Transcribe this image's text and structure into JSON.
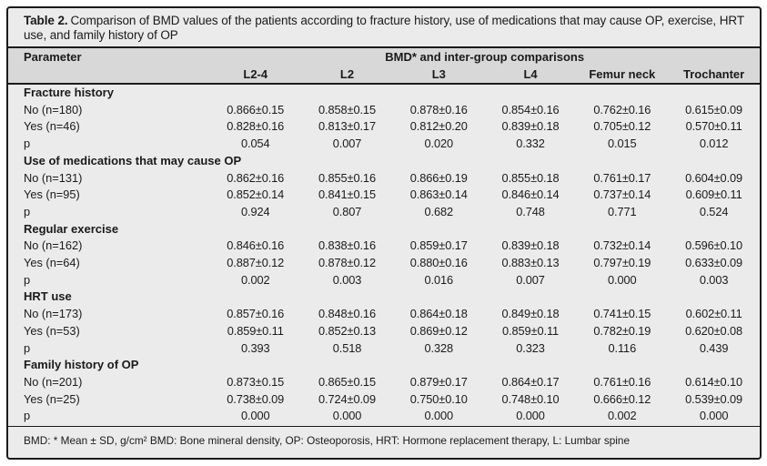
{
  "colors": {
    "page_bg": "#ffffff",
    "table_bg": "#ebebeb",
    "header_band": "#d8d8d8",
    "border": "#1b1b1b",
    "text": "#1a1a1a"
  },
  "table": {
    "title_label": "Table 2.",
    "title_text": "Comparison of BMD values of the patients according to fracture history, use of medications that may cause OP, exercise, HRT use, and family history of OP",
    "header": {
      "parameter": "Parameter",
      "group": "BMD* and inter-group comparisons",
      "columns": [
        "L2-4",
        "L2",
        "L3",
        "L4",
        "Femur neck",
        "Trochanter"
      ]
    },
    "sections": [
      {
        "name": "Fracture history",
        "rows": [
          {
            "label": "No (n=180)",
            "values": [
              "0.866±0.15",
              "0.858±0.15",
              "0.878±0.16",
              "0.854±0.16",
              "0.762±0.16",
              "0.615±0.09"
            ]
          },
          {
            "label": "Yes (n=46)",
            "values": [
              "0.828±0.16",
              "0.813±0.17",
              "0.812±0.20",
              "0.839±0.18",
              "0.705±0.12",
              "0.570±0.11"
            ]
          },
          {
            "label": "p",
            "values": [
              "0.054",
              "0.007",
              "0.020",
              "0.332",
              "0.015",
              "0.012"
            ]
          }
        ]
      },
      {
        "name": "Use of medications that may cause OP",
        "rows": [
          {
            "label": "No (n=131)",
            "values": [
              "0.862±0.16",
              "0.855±0.16",
              "0.866±0.19",
              "0.855±0.18",
              "0.761±0.17",
              "0.604±0.09"
            ]
          },
          {
            "label": "Yes (n=95)",
            "values": [
              "0.852±0.14",
              "0.841±0.15",
              "0.863±0.14",
              "0.846±0.14",
              "0.737±0.14",
              "0.609±0.11"
            ]
          },
          {
            "label": "p",
            "values": [
              "0.924",
              "0.807",
              "0.682",
              "0.748",
              "0.771",
              "0.524"
            ]
          }
        ]
      },
      {
        "name": "Regular exercise",
        "rows": [
          {
            "label": "No (n=162)",
            "values": [
              "0.846±0.16",
              "0.838±0.16",
              "0.859±0.17",
              "0.839±0.18",
              "0.732±0.14",
              "0.596±0.10"
            ]
          },
          {
            "label": "Yes (n=64)",
            "values": [
              "0.887±0.12",
              "0.878±0.12",
              "0.880±0.16",
              "0.883±0.13",
              "0.797±0.19",
              "0.633±0.09"
            ]
          },
          {
            "label": "p",
            "values": [
              "0.002",
              "0.003",
              "0.016",
              "0.007",
              "0.000",
              "0.003"
            ]
          }
        ]
      },
      {
        "name": "HRT use",
        "rows": [
          {
            "label": "No (n=173)",
            "values": [
              "0.857±0.16",
              "0.848±0.16",
              "0.864±0.18",
              "0.849±0.18",
              "0.741±0.15",
              "0.602±0.11"
            ]
          },
          {
            "label": "Yes (n=53)",
            "values": [
              "0.859±0.11",
              "0.852±0.13",
              "0.869±0.12",
              "0.859±0.11",
              "0.782±0.19",
              "0.620±0.08"
            ]
          },
          {
            "label": "p",
            "values": [
              "0.393",
              "0.518",
              "0.328",
              "0.323",
              "0.116",
              "0.439"
            ]
          }
        ]
      },
      {
        "name": "Family history of OP",
        "rows": [
          {
            "label": "No (n=201)",
            "values": [
              "0.873±0.15",
              "0.865±0.15",
              "0.879±0.17",
              "0.864±0.17",
              "0.761±0.16",
              "0.614±0.10"
            ]
          },
          {
            "label": "Yes (n=25)",
            "values": [
              "0.738±0.09",
              "0.724±0.09",
              "0.750±0.10",
              "0.748±0.10",
              "0.666±0.12",
              "0.539±0.09"
            ]
          },
          {
            "label": "p",
            "values": [
              "0.000",
              "0.000",
              "0.000",
              "0.000",
              "0.002",
              "0.000"
            ]
          }
        ]
      }
    ],
    "footnote": "BMD: * Mean ± SD, g/cm² BMD: Bone mineral density, OP: Osteoporosis, HRT: Hormone replacement therapy, L: Lumbar spine"
  }
}
